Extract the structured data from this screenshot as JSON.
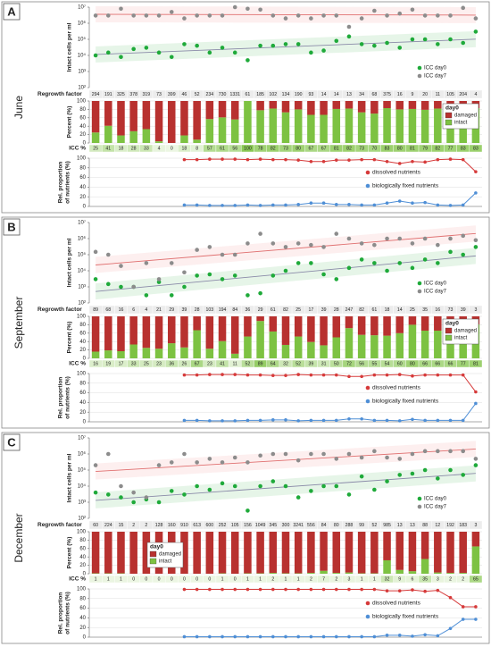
{
  "panels": [
    {
      "label": "A",
      "month": "June"
    },
    {
      "label": "B",
      "month": "September"
    },
    {
      "label": "C",
      "month": "December"
    }
  ],
  "chart_data": [
    {
      "type": "scatter",
      "y_label": "Intact cells per ml",
      "log": true,
      "ylim": [
        100,
        10000000
      ],
      "yticks": [
        {
          "value": 100,
          "label": "10²"
        },
        {
          "value": 1000,
          "label": "10³"
        },
        {
          "value": 10000,
          "label": "10⁴"
        },
        {
          "value": 100000,
          "label": "10⁵"
        },
        {
          "value": 1000000,
          "label": "10⁶"
        },
        {
          "value": 10000000,
          "label": "10⁷"
        }
      ],
      "legend": "lower right",
      "series": [
        {
          "name": "ICC day0",
          "color": "#1faa3a",
          "trend_color": "#8a8aa8",
          "band_color": "#3cb44b",
          "values": [
            10000,
            15000,
            8000,
            25000,
            30000,
            15000,
            8000,
            50000,
            40000,
            15000,
            30000,
            15000,
            5000,
            40000,
            40000,
            50000,
            50000,
            15000,
            20000,
            80000,
            150000,
            50000,
            40000,
            60000,
            30000,
            100000,
            100000,
            50000,
            100000,
            60000,
            300000
          ]
        },
        {
          "name": "ICC day7",
          "color": "#8c8c8c",
          "trend_color": "#e07070",
          "band_color": "#f08080",
          "values": [
            3000000,
            3000000,
            8000000,
            3000000,
            3000000,
            3000000,
            5000000,
            2000000,
            3000000,
            3000000,
            3000000,
            10000000,
            8000000,
            7000000,
            3000000,
            2000000,
            3000000,
            2000000,
            3000000,
            3000000,
            600000,
            2000000,
            6000000,
            3000000,
            4000000,
            7000000,
            3000000,
            3000000,
            3000000,
            9000000,
            2000000
          ]
        }
      ]
    },
    {
      "type": "bar",
      "y_label": "Percent (%)",
      "ylim": [
        0,
        100
      ],
      "yticks": [
        0,
        20,
        40,
        60,
        80,
        100
      ],
      "grid": true,
      "legend": "upper right",
      "legend_title": "day0",
      "top_row": {
        "label": "Regrowth factor",
        "values": [
          294,
          191,
          325,
          378,
          319,
          73,
          399,
          46,
          52,
          234,
          730,
          1331,
          61,
          185,
          102,
          134,
          190,
          93,
          14,
          14,
          13,
          34,
          68,
          375,
          16,
          9,
          20,
          11,
          105,
          204,
          4
        ]
      },
      "bottom_row_label": "ICC %",
      "series": [
        {
          "name": "damaged",
          "color": "#b8312f",
          "values": [
            75,
            59,
            82,
            72,
            67,
            96,
            100,
            82,
            92,
            43,
            39,
            44,
            0,
            22,
            18,
            27,
            20,
            33,
            33,
            19,
            18,
            27,
            30,
            17,
            20,
            19,
            21,
            18,
            23,
            17,
            17
          ]
        },
        {
          "name": "intact",
          "color": "#7dc242",
          "values": [
            25,
            41,
            18,
            28,
            33,
            4,
            0,
            18,
            8,
            57,
            61,
            56,
            100,
            78,
            82,
            73,
            80,
            67,
            67,
            81,
            82,
            73,
            70,
            83,
            80,
            81,
            79,
            82,
            77,
            83,
            83
          ]
        }
      ]
    },
    {
      "type": "line",
      "y_label": [
        "Rel. proportion",
        "of nutrients (%)"
      ],
      "ylim": [
        0,
        100
      ],
      "yticks": [
        0,
        20,
        40,
        60,
        80,
        100
      ],
      "grid": true,
      "legend": "center right",
      "series": [
        {
          "name": "dissolved nutrients",
          "color": "#d63a3a",
          "values": [
            null,
            null,
            null,
            null,
            null,
            null,
            null,
            97,
            97,
            98,
            98,
            98,
            97,
            98,
            97,
            97,
            96,
            93,
            93,
            96,
            96,
            97,
            97,
            93,
            89,
            93,
            92,
            97,
            98,
            97,
            72
          ]
        },
        {
          "name": "biologically fixed nutrients",
          "color": "#4f8fd6",
          "values": [
            null,
            null,
            null,
            null,
            null,
            null,
            null,
            3,
            3,
            2,
            2,
            2,
            3,
            2,
            3,
            3,
            4,
            7,
            7,
            4,
            4,
            3,
            3,
            7,
            11,
            7,
            8,
            3,
            2,
            3,
            28
          ]
        }
      ]
    },
    {
      "type": "scatter",
      "y_label": "Intact cells per ml",
      "log": true,
      "ylim": [
        100,
        10000000
      ],
      "yticks": [
        {
          "value": 100,
          "label": "10²"
        },
        {
          "value": 1000,
          "label": "10³"
        },
        {
          "value": 10000,
          "label": "10⁴"
        },
        {
          "value": 100000,
          "label": "10⁵"
        },
        {
          "value": 1000000,
          "label": "10⁶"
        },
        {
          "value": 10000000,
          "label": "10⁷"
        }
      ],
      "legend": "lower right",
      "series": [
        {
          "name": "ICC day0",
          "color": "#1faa3a",
          "trend_color": "#8a8aa8",
          "band_color": "#3cb44b",
          "values": [
            3000,
            1500,
            1000,
            1000,
            300,
            2000,
            300,
            1000,
            5000,
            6000,
            3000,
            5000,
            300,
            400,
            5000,
            10000,
            30000,
            30000,
            6000,
            3000,
            15000,
            50000,
            30000,
            10000,
            30000,
            15000,
            50000,
            30000,
            150000,
            100000,
            300000
          ]
        },
        {
          "name": "ICC day7",
          "color": "#8c8c8c",
          "trend_color": "#e07070",
          "band_color": "#f08080",
          "values": [
            150000,
            100000,
            20000,
            1000,
            30000,
            3000,
            30000,
            8000,
            200000,
            300000,
            100000,
            100000,
            500000,
            2000000,
            500000,
            300000,
            500000,
            400000,
            300000,
            2000000,
            1000000,
            500000,
            400000,
            1000000,
            1000000,
            500000,
            1000000,
            400000,
            1000000,
            1500000,
            800000
          ]
        }
      ]
    },
    {
      "type": "bar",
      "y_label": "Percent (%)",
      "ylim": [
        0,
        100
      ],
      "yticks": [
        0,
        20,
        40,
        60,
        80,
        100
      ],
      "grid": true,
      "legend": "upper right",
      "legend_title": "day0",
      "top_row": {
        "label": "Regrowth factor",
        "values": [
          89,
          68,
          16,
          6,
          4,
          21,
          29,
          39,
          28,
          103,
          194,
          84,
          36,
          29,
          61,
          82,
          25,
          17,
          39,
          28,
          247,
          82,
          61,
          18,
          14,
          25,
          35,
          16,
          73,
          39,
          3
        ]
      },
      "bottom_row_label": "ICC %",
      "series": [
        {
          "name": "damaged",
          "color": "#b8312f",
          "values": [
            84,
            81,
            83,
            67,
            75,
            77,
            64,
            74,
            33,
            77,
            59,
            89,
            48,
            11,
            36,
            68,
            48,
            61,
            69,
            50,
            28,
            44,
            45,
            46,
            40,
            20,
            34,
            34,
            34,
            23,
            19
          ]
        },
        {
          "name": "intact",
          "color": "#7dc242",
          "values": [
            16,
            19,
            17,
            33,
            25,
            23,
            36,
            26,
            67,
            23,
            41,
            11,
            52,
            89,
            64,
            32,
            52,
            39,
            31,
            50,
            72,
            56,
            55,
            54,
            60,
            80,
            66,
            66,
            66,
            77,
            81
          ]
        }
      ]
    },
    {
      "type": "line",
      "y_label": [
        "Rel. proportion",
        "of nutrients (%)"
      ],
      "ylim": [
        0,
        100
      ],
      "yticks": [
        0,
        20,
        40,
        60,
        80,
        100
      ],
      "grid": true,
      "legend": "center right",
      "series": [
        {
          "name": "dissolved nutrients",
          "color": "#d63a3a",
          "values": [
            null,
            null,
            null,
            null,
            null,
            null,
            null,
            97,
            97,
            98,
            98,
            98,
            97,
            97,
            96,
            96,
            98,
            97,
            97,
            97,
            94,
            94,
            97,
            97,
            98,
            95,
            97,
            97,
            97,
            97,
            62
          ]
        },
        {
          "name": "biologically fixed nutrients",
          "color": "#4f8fd6",
          "values": [
            null,
            null,
            null,
            null,
            null,
            null,
            null,
            3,
            3,
            2,
            2,
            2,
            3,
            3,
            4,
            4,
            2,
            3,
            3,
            3,
            6,
            6,
            3,
            3,
            2,
            5,
            3,
            3,
            3,
            3,
            38
          ]
        }
      ]
    },
    {
      "type": "scatter",
      "y_label": "Intact cells per ml",
      "log": true,
      "ylim": [
        100,
        10000000
      ],
      "yticks": [
        {
          "value": 100,
          "label": "10²"
        },
        {
          "value": 1000,
          "label": "10³"
        },
        {
          "value": 10000,
          "label": "10⁴"
        },
        {
          "value": 100000,
          "label": "10⁵"
        },
        {
          "value": 1000000,
          "label": "10⁶"
        },
        {
          "value": 10000000,
          "label": "10⁷"
        }
      ],
      "legend": "lower right",
      "series": [
        {
          "name": "ICC day0",
          "color": "#1faa3a",
          "trend_color": "#8a8aa8",
          "band_color": "#3cb44b",
          "values": [
            4000,
            3000,
            2000,
            1000,
            1500,
            1000,
            5000,
            3000,
            10000,
            6000,
            15000,
            10000,
            300,
            10000,
            20000,
            10000,
            2000,
            5000,
            10000,
            10000,
            3000,
            40000,
            6000,
            20000,
            50000,
            60000,
            100000,
            30000,
            100000,
            50000,
            200000
          ]
        },
        {
          "name": "ICC day7",
          "color": "#8c8c8c",
          "trend_color": "#e07070",
          "band_color": "#f08080",
          "values": [
            200000,
            1000000,
            10000,
            4000,
            2000,
            200000,
            300000,
            1000000,
            300000,
            500000,
            300000,
            600000,
            300000,
            800000,
            1000000,
            1000000,
            400000,
            1000000,
            1000000,
            500000,
            1000000,
            600000,
            1500000,
            600000,
            500000,
            1000000,
            1500000,
            1500000,
            1500000,
            1500000,
            500000
          ]
        }
      ]
    },
    {
      "type": "bar",
      "y_label": "Percent (%)",
      "ylim": [
        0,
        100
      ],
      "yticks": [
        0,
        20,
        40,
        60,
        80,
        100
      ],
      "grid": true,
      "legend": "center left",
      "legend_title": "day0",
      "top_row": {
        "label": "Regrowth factor",
        "values": [
          60,
          224,
          15,
          2,
          2,
          128,
          160,
          910,
          613,
          600,
          252,
          105,
          156,
          1049,
          345,
          300,
          3241,
          556,
          84,
          80,
          288,
          99,
          52,
          985,
          13,
          13,
          88,
          12,
          192,
          183,
          3
        ]
      },
      "bottom_row_label": "ICC %",
      "series": [
        {
          "name": "damaged",
          "color": "#b8312f",
          "values": [
            99,
            99,
            99,
            100,
            100,
            100,
            100,
            100,
            100,
            100,
            99,
            100,
            99,
            99,
            98,
            99,
            99,
            98,
            93,
            98,
            97,
            99,
            99,
            68,
            91,
            94,
            65,
            97,
            98,
            98,
            35
          ]
        },
        {
          "name": "intact",
          "color": "#7dc242",
          "values": [
            1,
            1,
            1,
            0,
            0,
            0,
            0,
            0,
            0,
            0,
            1,
            0,
            1,
            1,
            2,
            1,
            1,
            2,
            7,
            2,
            3,
            1,
            1,
            32,
            9,
            6,
            35,
            3,
            2,
            2,
            65
          ]
        }
      ]
    },
    {
      "type": "line",
      "y_label": [
        "Rel. proportion",
        "of nutrients (%)"
      ],
      "ylim": [
        0,
        100
      ],
      "yticks": [
        0,
        20,
        40,
        60,
        80,
        100
      ],
      "grid": true,
      "legend": "center right",
      "series": [
        {
          "name": "dissolved nutrients",
          "color": "#d63a3a",
          "values": [
            null,
            null,
            null,
            null,
            null,
            null,
            null,
            99,
            99,
            99,
            99,
            99,
            99,
            99,
            99,
            99,
            99,
            99,
            99,
            99,
            99,
            99,
            99,
            96,
            96,
            98,
            95,
            97,
            82,
            63,
            63
          ]
        },
        {
          "name": "biologically fixed nutrients",
          "color": "#4f8fd6",
          "values": [
            null,
            null,
            null,
            null,
            null,
            null,
            null,
            1,
            1,
            1,
            1,
            1,
            1,
            1,
            1,
            1,
            1,
            1,
            1,
            1,
            1,
            1,
            1,
            4,
            4,
            2,
            5,
            3,
            18,
            37,
            37
          ]
        }
      ]
    }
  ]
}
